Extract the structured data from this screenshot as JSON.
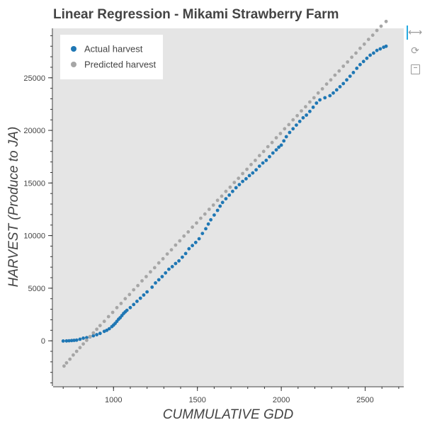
{
  "chart_data": {
    "type": "scatter",
    "title": "Linear Regression - Mikami Strawberry Farm",
    "xlabel": "CUMMULATIVE GDD",
    "ylabel": "HARVEST (Produce to JA)",
    "xlim": [
      640,
      2730
    ],
    "ylim": [
      -4300,
      29700
    ],
    "x_ticks": [
      1000,
      1500,
      2000,
      2500
    ],
    "y_ticks": [
      0,
      5000,
      10000,
      15000,
      20000,
      25000
    ],
    "x_minor_step": 100,
    "y_minor_step": 1000,
    "grid": false,
    "legend_position": "top-left",
    "background": "#e5e5e5",
    "series": [
      {
        "name": "Actual harvest",
        "color": "#1f77b4",
        "points": [
          [
            700,
            -20
          ],
          [
            720,
            -10
          ],
          [
            735,
            0
          ],
          [
            750,
            20
          ],
          [
            765,
            40
          ],
          [
            780,
            60
          ],
          [
            800,
            150
          ],
          [
            820,
            250
          ],
          [
            840,
            300
          ],
          [
            860,
            380
          ],
          [
            880,
            480
          ],
          [
            900,
            580
          ],
          [
            920,
            700
          ],
          [
            945,
            900
          ],
          [
            960,
            1000
          ],
          [
            975,
            1150
          ],
          [
            990,
            1350
          ],
          [
            1000,
            1500
          ],
          [
            1010,
            1650
          ],
          [
            1020,
            1850
          ],
          [
            1030,
            2050
          ],
          [
            1040,
            2200
          ],
          [
            1050,
            2400
          ],
          [
            1060,
            2600
          ],
          [
            1070,
            2750
          ],
          [
            1080,
            2900
          ],
          [
            1100,
            3150
          ],
          [
            1120,
            3450
          ],
          [
            1140,
            3750
          ],
          [
            1160,
            4050
          ],
          [
            1180,
            4350
          ],
          [
            1200,
            4650
          ],
          [
            1230,
            5100
          ],
          [
            1250,
            5500
          ],
          [
            1270,
            5800
          ],
          [
            1290,
            6100
          ],
          [
            1310,
            6450
          ],
          [
            1330,
            6800
          ],
          [
            1350,
            7050
          ],
          [
            1370,
            7350
          ],
          [
            1390,
            7600
          ],
          [
            1410,
            7950
          ],
          [
            1430,
            8300
          ],
          [
            1450,
            8750
          ],
          [
            1470,
            9050
          ],
          [
            1490,
            9350
          ],
          [
            1510,
            9700
          ],
          [
            1530,
            10200
          ],
          [
            1550,
            10650
          ],
          [
            1565,
            11100
          ],
          [
            1580,
            11500
          ],
          [
            1600,
            11950
          ],
          [
            1620,
            12400
          ],
          [
            1635,
            12800
          ],
          [
            1650,
            13150
          ],
          [
            1670,
            13500
          ],
          [
            1690,
            13850
          ],
          [
            1710,
            14200
          ],
          [
            1730,
            14550
          ],
          [
            1750,
            14850
          ],
          [
            1770,
            15150
          ],
          [
            1790,
            15400
          ],
          [
            1810,
            15700
          ],
          [
            1830,
            15950
          ],
          [
            1850,
            16250
          ],
          [
            1870,
            16600
          ],
          [
            1890,
            16900
          ],
          [
            1910,
            17150
          ],
          [
            1930,
            17500
          ],
          [
            1950,
            17850
          ],
          [
            1970,
            18150
          ],
          [
            1985,
            18400
          ],
          [
            2000,
            18600
          ],
          [
            2015,
            19000
          ],
          [
            2030,
            19400
          ],
          [
            2050,
            19800
          ],
          [
            2070,
            20150
          ],
          [
            2090,
            20500
          ],
          [
            2110,
            20850
          ],
          [
            2130,
            21200
          ],
          [
            2150,
            21450
          ],
          [
            2170,
            21800
          ],
          [
            2190,
            22200
          ],
          [
            2210,
            22600
          ],
          [
            2230,
            22900
          ],
          [
            2260,
            23100
          ],
          [
            2290,
            23300
          ],
          [
            2310,
            23550
          ],
          [
            2330,
            23850
          ],
          [
            2350,
            24150
          ],
          [
            2370,
            24450
          ],
          [
            2390,
            24800
          ],
          [
            2410,
            25150
          ],
          [
            2430,
            25500
          ],
          [
            2450,
            25900
          ],
          [
            2470,
            26250
          ],
          [
            2490,
            26550
          ],
          [
            2510,
            26850
          ],
          [
            2530,
            27150
          ],
          [
            2550,
            27350
          ],
          [
            2570,
            27600
          ],
          [
            2590,
            27750
          ],
          [
            2610,
            27900
          ],
          [
            2625,
            28000
          ]
        ]
      },
      {
        "name": "Predicted harvest",
        "color": "#a6a6a6",
        "points": [
          [
            705,
            -2400
          ],
          [
            720,
            -2100
          ],
          [
            740,
            -1750
          ],
          [
            760,
            -1350
          ],
          [
            780,
            -1000
          ],
          [
            800,
            -650
          ],
          [
            820,
            -300
          ],
          [
            840,
            50
          ],
          [
            860,
            400
          ],
          [
            880,
            750
          ],
          [
            900,
            1100
          ],
          [
            920,
            1450
          ],
          [
            945,
            1850
          ],
          [
            970,
            2300
          ],
          [
            995,
            2700
          ],
          [
            1020,
            3150
          ],
          [
            1045,
            3550
          ],
          [
            1070,
            4000
          ],
          [
            1095,
            4400
          ],
          [
            1120,
            4850
          ],
          [
            1145,
            5250
          ],
          [
            1170,
            5700
          ],
          [
            1195,
            6100
          ],
          [
            1220,
            6550
          ],
          [
            1245,
            6950
          ],
          [
            1270,
            7400
          ],
          [
            1295,
            7800
          ],
          [
            1320,
            8250
          ],
          [
            1345,
            8650
          ],
          [
            1370,
            9100
          ],
          [
            1395,
            9500
          ],
          [
            1420,
            9950
          ],
          [
            1445,
            10350
          ],
          [
            1470,
            10800
          ],
          [
            1495,
            11200
          ],
          [
            1520,
            11650
          ],
          [
            1545,
            12050
          ],
          [
            1570,
            12500
          ],
          [
            1595,
            12900
          ],
          [
            1620,
            13350
          ],
          [
            1645,
            13750
          ],
          [
            1670,
            14200
          ],
          [
            1695,
            14600
          ],
          [
            1720,
            15050
          ],
          [
            1745,
            15450
          ],
          [
            1770,
            15900
          ],
          [
            1795,
            16300
          ],
          [
            1820,
            16750
          ],
          [
            1845,
            17150
          ],
          [
            1870,
            17600
          ],
          [
            1895,
            18000
          ],
          [
            1920,
            18450
          ],
          [
            1945,
            18850
          ],
          [
            1970,
            19300
          ],
          [
            1995,
            19700
          ],
          [
            2020,
            20150
          ],
          [
            2045,
            20550
          ],
          [
            2070,
            21000
          ],
          [
            2095,
            21400
          ],
          [
            2120,
            21850
          ],
          [
            2145,
            22250
          ],
          [
            2170,
            22700
          ],
          [
            2195,
            23100
          ],
          [
            2220,
            23550
          ],
          [
            2245,
            23950
          ],
          [
            2270,
            24400
          ],
          [
            2295,
            24800
          ],
          [
            2320,
            25250
          ],
          [
            2345,
            25650
          ],
          [
            2370,
            26100
          ],
          [
            2395,
            26500
          ],
          [
            2420,
            26950
          ],
          [
            2445,
            27350
          ],
          [
            2470,
            27800
          ],
          [
            2495,
            28200
          ],
          [
            2520,
            28650
          ],
          [
            2545,
            29050
          ],
          [
            2570,
            29500
          ],
          [
            2595,
            29900
          ],
          [
            2625,
            30350
          ]
        ]
      }
    ]
  }
}
